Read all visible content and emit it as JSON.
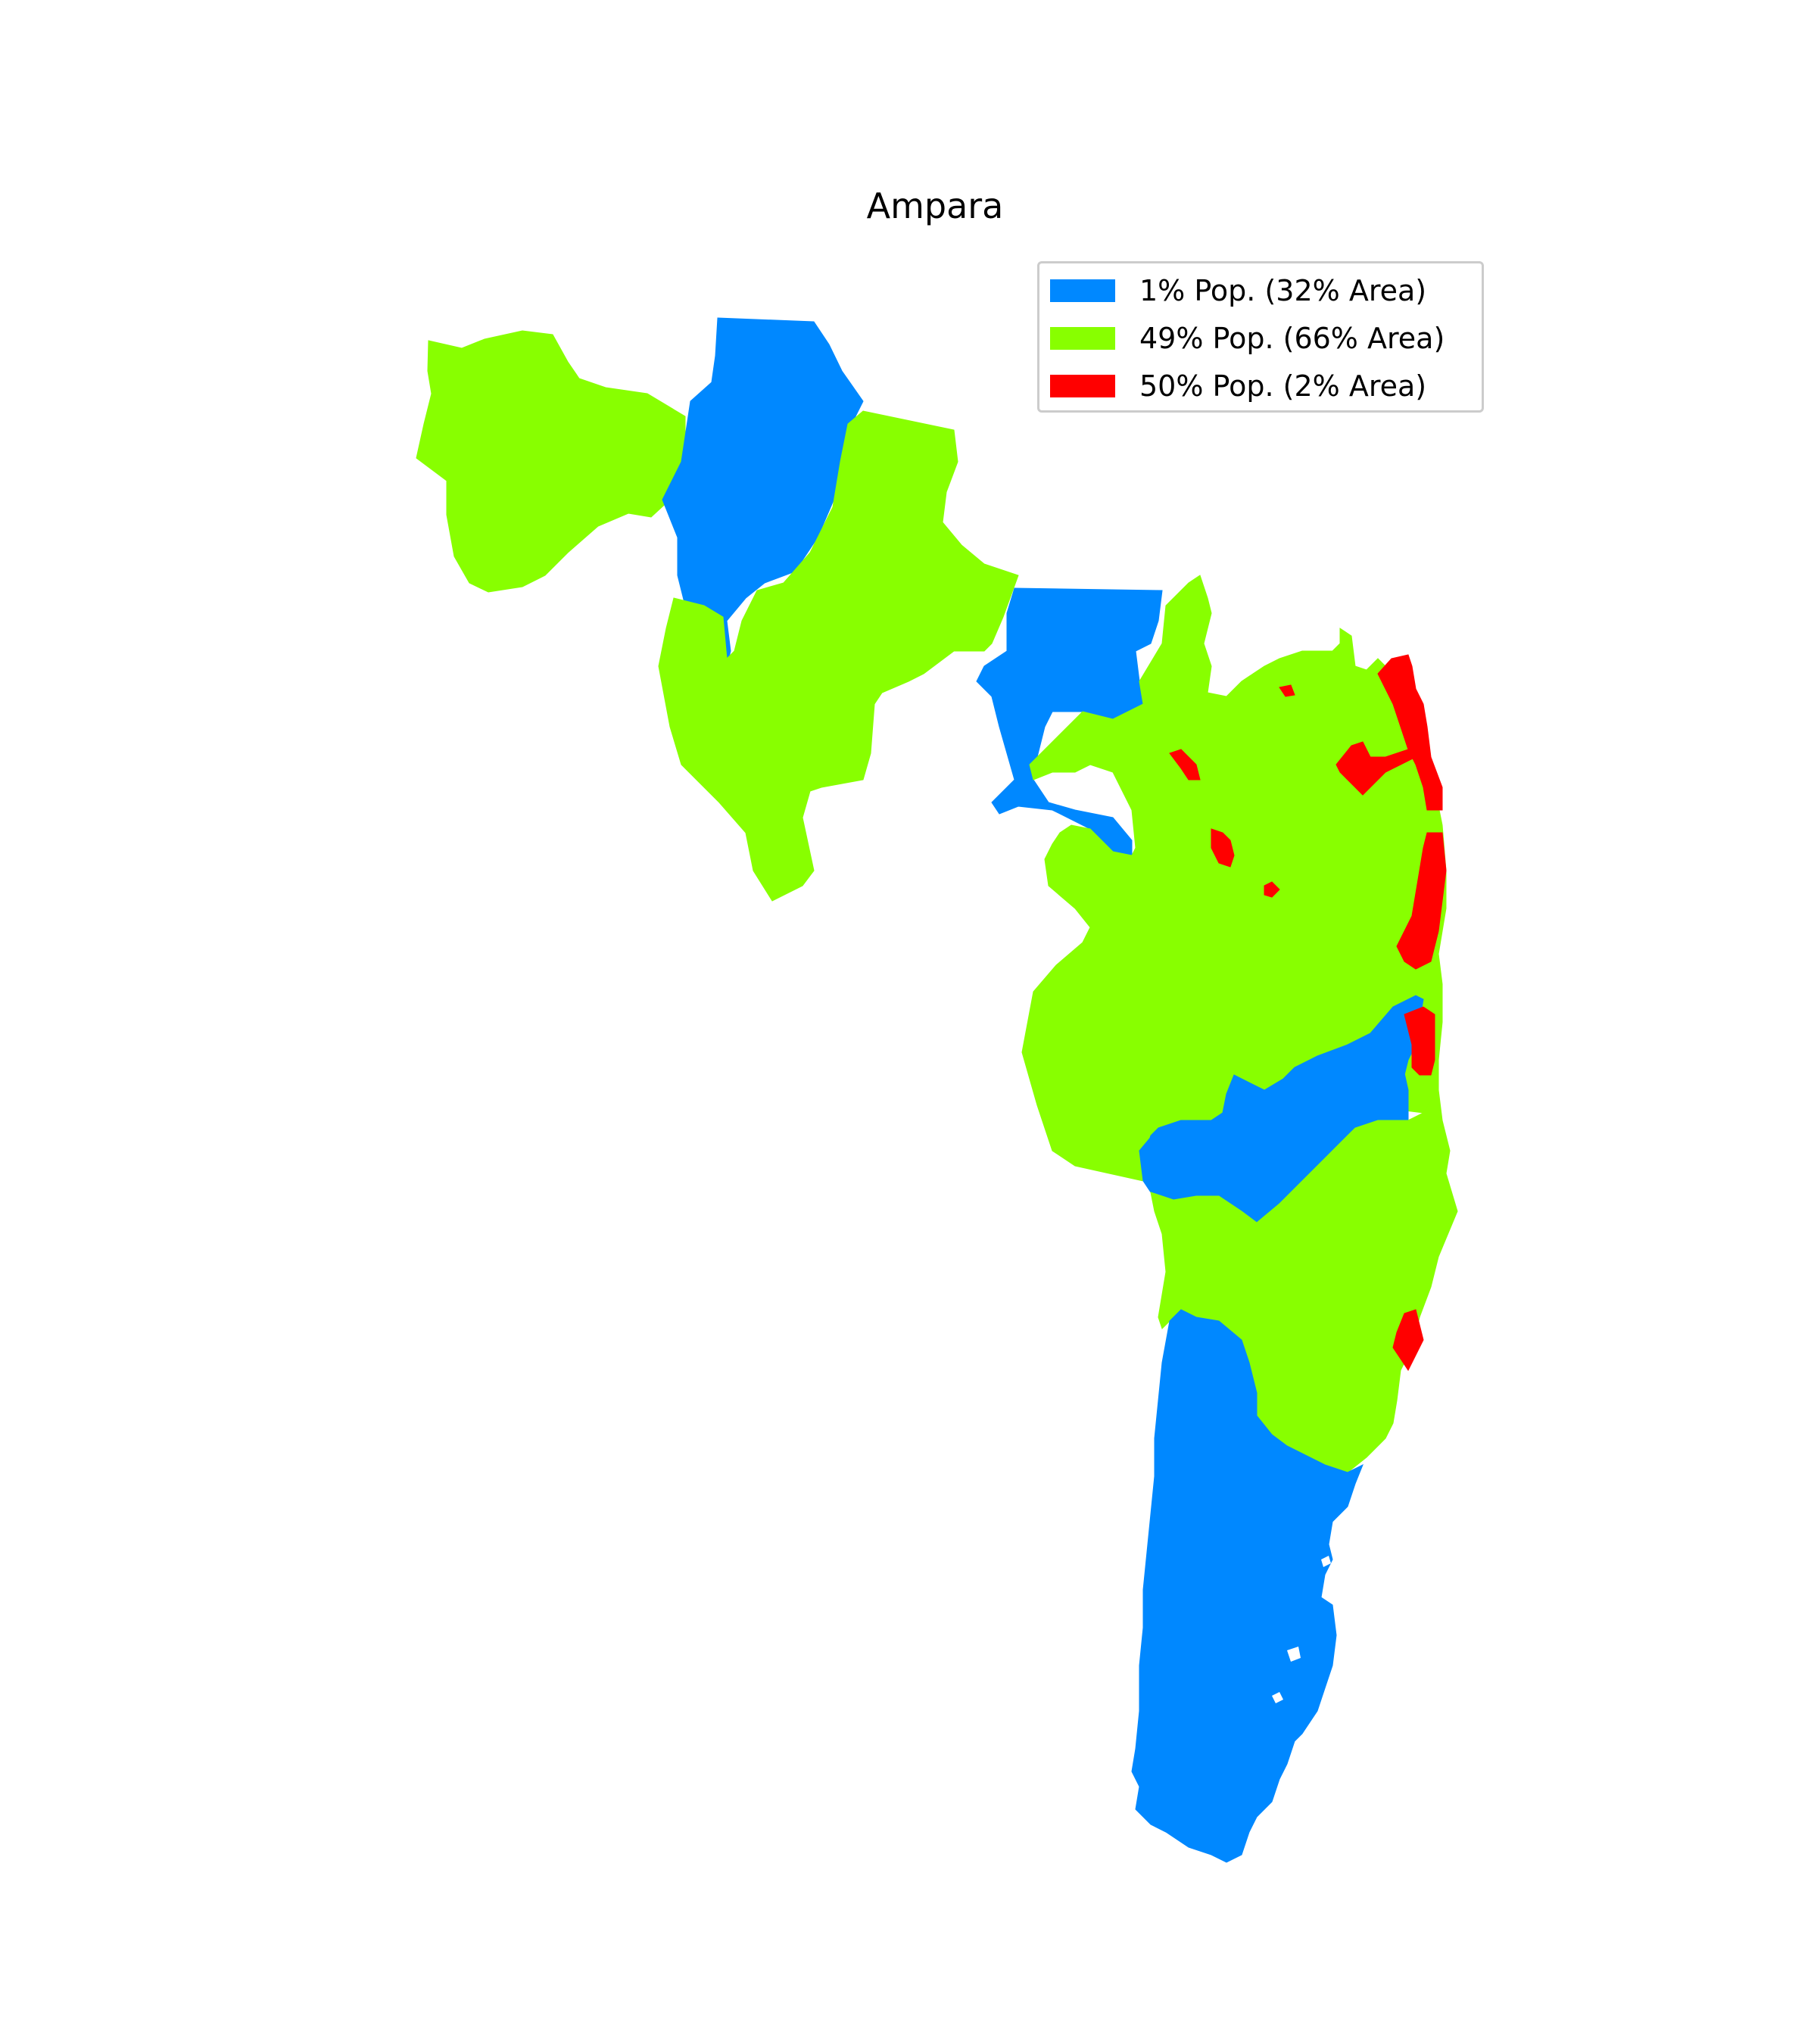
{
  "title": "Ampara",
  "legend": [
    {
      "label": "1% Pop. (32% Area)",
      "color": "#0088ff"
    },
    {
      "label": "49% Pop. (66% Area)",
      "color": "#88ff00"
    },
    {
      "label": "50% Pop. (2% Area)",
      "color": "#ff0000"
    }
  ],
  "classes": {
    "low": {
      "color": "#0088ff",
      "population_pct": 1,
      "area_pct": 32
    },
    "mid": {
      "color": "#88ff00",
      "population_pct": 49,
      "area_pct": 66
    },
    "high": {
      "color": "#ff0000",
      "population_pct": 50,
      "area_pct": 2
    }
  }
}
